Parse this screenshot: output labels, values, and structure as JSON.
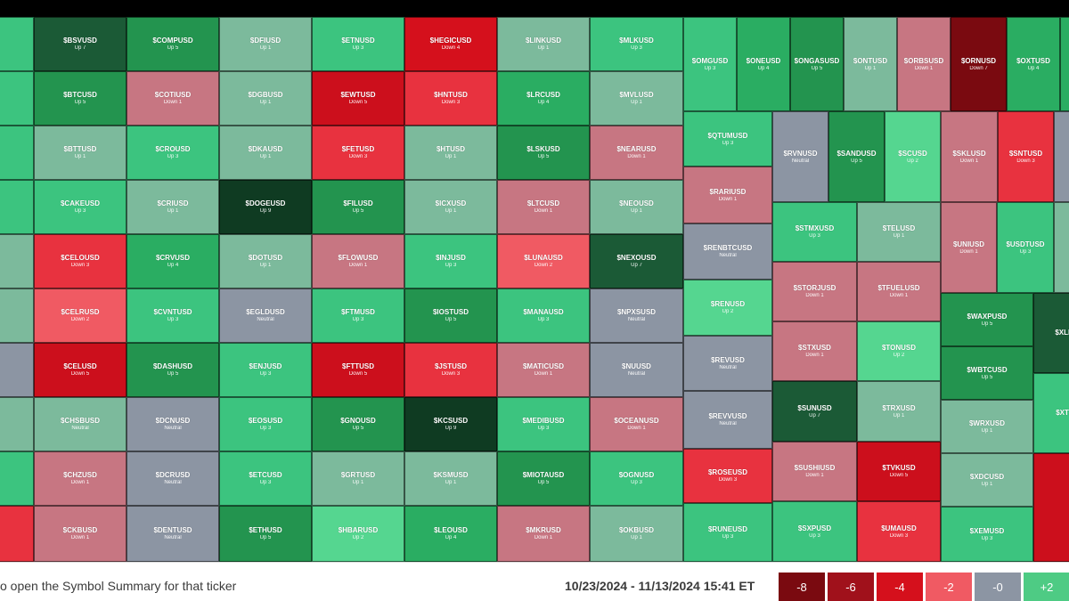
{
  "footer": {
    "hint": "o open the Symbol Summary for that ticker",
    "date_range": "10/23/2024 - 11/13/2024 15:41 ET"
  },
  "legend": [
    {
      "label": "-8",
      "color": "#7a0a10"
    },
    {
      "label": "-6",
      "color": "#a0111b"
    },
    {
      "label": "-4",
      "color": "#d5101c"
    },
    {
      "label": "-2",
      "color": "#f05a63"
    },
    {
      "label": "-0",
      "color": "#8c95a3"
    },
    {
      "label": "+2",
      "color": "#4ecb84"
    }
  ],
  "tiles": [
    {
      "s": "",
      "c": "",
      "color": "#3cc47f"
    },
    {
      "s": "",
      "c": "",
      "color": "#3cc47f"
    },
    {
      "s": "",
      "c": "",
      "color": "#3cc47f"
    },
    {
      "s": "",
      "c": "",
      "color": "#3cc47f"
    },
    {
      "s": "",
      "c": "",
      "color": "#7cba9c"
    },
    {
      "s": "",
      "c": "",
      "color": "#7cba9c"
    },
    {
      "s": "",
      "c": "",
      "color": "#8c95a3"
    },
    {
      "s": "",
      "c": "",
      "color": "#7cba9c"
    },
    {
      "s": "",
      "c": "",
      "color": "#3cc47f"
    },
    {
      "s": "",
      "c": "",
      "color": "#e8323f"
    },
    {
      "s": "$BSVUSD",
      "c": "Up 7",
      "color": "#1b5a36"
    },
    {
      "s": "$BTCUSD",
      "c": "Up 5",
      "color": "#23944f"
    },
    {
      "s": "$BTTUSD",
      "c": "Up 1",
      "color": "#7cba9c"
    },
    {
      "s": "$CAKEUSD",
      "c": "Up 3",
      "color": "#3cc47f"
    },
    {
      "s": "$CELOUSD",
      "c": "Down 3",
      "color": "#e8323f"
    },
    {
      "s": "$CELRUSD",
      "c": "Down 2",
      "color": "#f05a63"
    },
    {
      "s": "$CELUSD",
      "c": "Down 5",
      "color": "#cc0f1c"
    },
    {
      "s": "$CHSBUSD",
      "c": "Neutral",
      "color": "#7cba9c"
    },
    {
      "s": "$CHZUSD",
      "c": "Down 1",
      "color": "#c77682"
    },
    {
      "s": "$CKBUSD",
      "c": "Down 1",
      "color": "#c77682"
    },
    {
      "s": "$COMPUSD",
      "c": "Up 5",
      "color": "#23944f"
    },
    {
      "s": "$COTIUSD",
      "c": "Down 1",
      "color": "#c77682"
    },
    {
      "s": "$CROUSD",
      "c": "Up 3",
      "color": "#3cc47f"
    },
    {
      "s": "$CRIUSD",
      "c": "Up 1",
      "color": "#7cba9c"
    },
    {
      "s": "$CRVUSD",
      "c": "Up 4",
      "color": "#2aad62"
    },
    {
      "s": "$CVNTUSD",
      "c": "Up 3",
      "color": "#3cc47f"
    },
    {
      "s": "$DASHUSD",
      "c": "Up 5",
      "color": "#23944f"
    },
    {
      "s": "$DCNUSD",
      "c": "Neutral",
      "color": "#8c95a3"
    },
    {
      "s": "$DCRUSD",
      "c": "Neutral",
      "color": "#8c95a3"
    },
    {
      "s": "$DENTUSD",
      "c": "Neutral",
      "color": "#8c95a3"
    },
    {
      "s": "$DFIUSD",
      "c": "Up 1",
      "color": "#7cba9c"
    },
    {
      "s": "$DGBUSD",
      "c": "Up 1",
      "color": "#7cba9c"
    },
    {
      "s": "$DKAUSD",
      "c": "Up 1",
      "color": "#7cba9c"
    },
    {
      "s": "$DOGEUSD",
      "c": "Up 9",
      "color": "#0f3b22"
    },
    {
      "s": "$DOTUSD",
      "c": "Up 1",
      "color": "#7cba9c"
    },
    {
      "s": "$EGLDUSD",
      "c": "Neutral",
      "color": "#8c95a3"
    },
    {
      "s": "$ENJUSD",
      "c": "Up 3",
      "color": "#3cc47f"
    },
    {
      "s": "$EOSUSD",
      "c": "Up 3",
      "color": "#3cc47f"
    },
    {
      "s": "$ETCUSD",
      "c": "Up 3",
      "color": "#3cc47f"
    },
    {
      "s": "$ETHUSD",
      "c": "Up 5",
      "color": "#23944f"
    },
    {
      "s": "$ETNUSD",
      "c": "Up 3",
      "color": "#3cc47f"
    },
    {
      "s": "$EWTUSD",
      "c": "Down 5",
      "color": "#cc0f1c"
    },
    {
      "s": "$FETUSD",
      "c": "Down 3",
      "color": "#e8323f"
    },
    {
      "s": "$FILUSD",
      "c": "Up 5",
      "color": "#23944f"
    },
    {
      "s": "$FLOWUSD",
      "c": "Down 1",
      "color": "#c77682"
    },
    {
      "s": "$FTMUSD",
      "c": "Up 3",
      "color": "#3cc47f"
    },
    {
      "s": "$FTTUSD",
      "c": "Down 5",
      "color": "#cc0f1c"
    },
    {
      "s": "$GNOUSD",
      "c": "Up 5",
      "color": "#23944f"
    },
    {
      "s": "$GRTUSD",
      "c": "Up 1",
      "color": "#7cba9c"
    },
    {
      "s": "$HBARUSD",
      "c": "Up 2",
      "color": "#55d690"
    },
    {
      "s": "$HEGICUSD",
      "c": "Down 4",
      "color": "#d5101c"
    },
    {
      "s": "$HNTUSD",
      "c": "Down 3",
      "color": "#e8323f"
    },
    {
      "s": "$HTUSD",
      "c": "Up 1",
      "color": "#7cba9c"
    },
    {
      "s": "$ICXUSD",
      "c": "Up 1",
      "color": "#7cba9c"
    },
    {
      "s": "$INJUSD",
      "c": "Up 3",
      "color": "#3cc47f"
    },
    {
      "s": "$IOSTUSD",
      "c": "Up 5",
      "color": "#23944f"
    },
    {
      "s": "$JSTUSD",
      "c": "Down 3",
      "color": "#e8323f"
    },
    {
      "s": "$KCSUSD",
      "c": "Up 9",
      "color": "#0f3b22"
    },
    {
      "s": "$KSMUSD",
      "c": "Up 1",
      "color": "#7cba9c"
    },
    {
      "s": "$LEOUSD",
      "c": "Up 4",
      "color": "#2aad62"
    },
    {
      "s": "$LINKUSD",
      "c": "Up 1",
      "color": "#7cba9c"
    },
    {
      "s": "$LRCUSD",
      "c": "Up 4",
      "color": "#2aad62"
    },
    {
      "s": "$LSKUSD",
      "c": "Up 5",
      "color": "#23944f"
    },
    {
      "s": "$LTCUSD",
      "c": "Down 1",
      "color": "#c77682"
    },
    {
      "s": "$LUNAUSD",
      "c": "Down 2",
      "color": "#f05a63"
    },
    {
      "s": "$MANAUSD",
      "c": "Up 3",
      "color": "#3cc47f"
    },
    {
      "s": "$MATICUSD",
      "c": "Down 1",
      "color": "#c77682"
    },
    {
      "s": "$MEDIBUSD",
      "c": "Up 3",
      "color": "#3cc47f"
    },
    {
      "s": "$MIOTAUSD",
      "c": "Up 5",
      "color": "#23944f"
    },
    {
      "s": "$MKRUSD",
      "c": "Down 1",
      "color": "#c77682"
    },
    {
      "s": "$MLKUSD",
      "c": "Up 3",
      "color": "#3cc47f"
    },
    {
      "s": "$MVLUSD",
      "c": "Up 1",
      "color": "#7cba9c"
    },
    {
      "s": "$NEARUSD",
      "c": "Down 1",
      "color": "#c77682"
    },
    {
      "s": "$NEOUSD",
      "c": "Up 1",
      "color": "#7cba9c"
    },
    {
      "s": "$NEXOUSD",
      "c": "Up 7",
      "color": "#1b5a36"
    },
    {
      "s": "$NPXSUSD",
      "c": "Neutral",
      "color": "#8c95a3"
    },
    {
      "s": "$NUUSD",
      "c": "Neutral",
      "color": "#8c95a3"
    },
    {
      "s": "$OCEANUSD",
      "c": "Down 1",
      "color": "#c77682"
    },
    {
      "s": "$OGNUSD",
      "c": "Up 3",
      "color": "#3cc47f"
    },
    {
      "s": "$OKBUSD",
      "c": "Up 1",
      "color": "#7cba9c"
    },
    {
      "s": "$OMGUSD",
      "c": "Up 3",
      "color": "#3cc47f"
    },
    {
      "s": "$ONEUSD",
      "c": "Up 4",
      "color": "#2aad62"
    },
    {
      "s": "$ONGASUSD",
      "c": "Up 5",
      "color": "#23944f"
    },
    {
      "s": "$ONTUSD",
      "c": "Up 1",
      "color": "#7cba9c"
    },
    {
      "s": "$ORBSUSD",
      "c": "Down 1",
      "color": "#c77682"
    },
    {
      "s": "$ORNUSD",
      "c": "Down 7",
      "color": "#7a0a10"
    },
    {
      "s": "$OXTUSD",
      "c": "Up 4",
      "color": "#2aad62"
    },
    {
      "s": "",
      "c": "",
      "color": "#2aad62"
    },
    {
      "s": "$QTUMUSD",
      "c": "Up 3",
      "color": "#3cc47f"
    },
    {
      "s": "$RARIUSD",
      "c": "Down 1",
      "color": "#c77682"
    },
    {
      "s": "$RENBTCUSD",
      "c": "Neutral",
      "color": "#8c95a3"
    },
    {
      "s": "$RENUSD",
      "c": "Up 2",
      "color": "#55d690"
    },
    {
      "s": "$REVUSD",
      "c": "Neutral",
      "color": "#8c95a3"
    },
    {
      "s": "$REVVUSD",
      "c": "Neutral",
      "color": "#8c95a3"
    },
    {
      "s": "$ROSEUSD",
      "c": "Down 3",
      "color": "#e8323f"
    },
    {
      "s": "$RUNEUSD",
      "c": "Up 3",
      "color": "#3cc47f"
    },
    {
      "s": "$RVNUSD",
      "c": "Neutral",
      "color": "#8c95a3"
    },
    {
      "s": "$SANDUSD",
      "c": "Up 5",
      "color": "#23944f"
    },
    {
      "s": "$SCUSD",
      "c": "Up 2",
      "color": "#55d690"
    },
    {
      "s": "$SKLUSD",
      "c": "Down 1",
      "color": "#c77682"
    },
    {
      "s": "$SNTUSD",
      "c": "Down 3",
      "color": "#e8323f"
    },
    {
      "s": "",
      "c": "",
      "color": "#8c95a3"
    },
    {
      "s": "$STMXUSD",
      "c": "Up 3",
      "color": "#3cc47f"
    },
    {
      "s": "$TELUSD",
      "c": "Up 1",
      "color": "#7cba9c"
    },
    {
      "s": "$UNIUSD",
      "c": "Down 1",
      "color": "#c77682"
    },
    {
      "s": "$USDTUSD",
      "c": "Up 3",
      "color": "#3cc47f"
    },
    {
      "s": "",
      "c": "",
      "color": "#7cba9c"
    },
    {
      "s": "$STORJUSD",
      "c": "Down 1",
      "color": "#c77682"
    },
    {
      "s": "$TFUELUSD",
      "c": "Down 1",
      "color": "#c77682"
    },
    {
      "s": "$STXUSD",
      "c": "Down 1",
      "color": "#c77682"
    },
    {
      "s": "$TONUSD",
      "c": "Up 2",
      "color": "#55d690"
    },
    {
      "s": "$SUNUSD",
      "c": "Up 7",
      "color": "#1b5a36"
    },
    {
      "s": "$TRXUSD",
      "c": "Up 1",
      "color": "#7cba9c"
    },
    {
      "s": "$SUSHIUSD",
      "c": "Down 1",
      "color": "#c77682"
    },
    {
      "s": "$TVKUSD",
      "c": "Down 5",
      "color": "#cc0f1c"
    },
    {
      "s": "$SXPUSD",
      "c": "Up 3",
      "color": "#3cc47f"
    },
    {
      "s": "$UMAUSD",
      "c": "Down 3",
      "color": "#e8323f"
    },
    {
      "s": "$WAXPUSD",
      "c": "Up 5",
      "color": "#23944f"
    },
    {
      "s": "$WBTCUSD",
      "c": "Up 5",
      "color": "#23944f"
    },
    {
      "s": "$WRXUSD",
      "c": "Up 1",
      "color": "#7cba9c"
    },
    {
      "s": "$XDCUSD",
      "c": "Up 1",
      "color": "#7cba9c"
    },
    {
      "s": "$XEMUSD",
      "c": "Up 3",
      "color": "#3cc47f"
    },
    {
      "s": "$XLM",
      "c": "",
      "color": "#1b5a36"
    },
    {
      "s": "$XTZ",
      "c": "",
      "color": "#3cc47f"
    },
    {
      "s": "",
      "c": "",
      "color": "#cc0f1c"
    }
  ]
}
